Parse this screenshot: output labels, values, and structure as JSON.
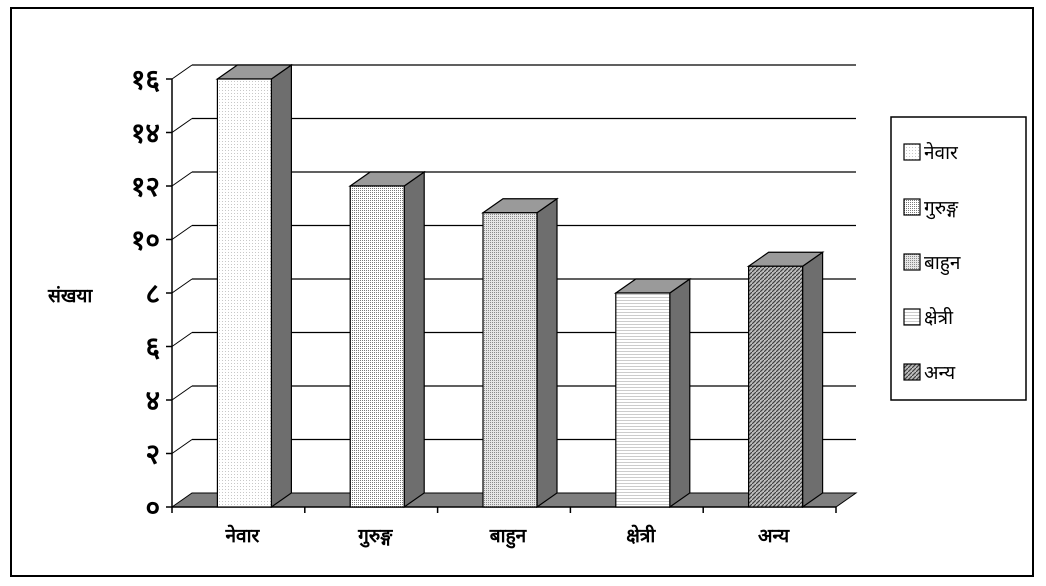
{
  "chart_data": {
    "type": "bar",
    "title": "",
    "xlabel": "",
    "ylabel": "संखया",
    "categories": [
      "नेवार",
      "गुरुङ्ग",
      "बाहुन",
      "क्षेत्री",
      "अन्य"
    ],
    "values": [
      16,
      12,
      11,
      8,
      9
    ],
    "ylim": [
      0,
      16
    ],
    "yticks": [
      0,
      2,
      4,
      6,
      8,
      10,
      12,
      14,
      16
    ],
    "ytick_labels": [
      "०",
      "२",
      "४",
      "६",
      "८",
      "१०",
      "१२",
      "१४",
      "१६"
    ],
    "grid": true,
    "three_d": true,
    "legend": {
      "placement": "right",
      "entries": [
        "नेवार",
        "गुरुङ्ग",
        "बाहुन",
        "क्षेत्री",
        "अन्य"
      ]
    }
  }
}
